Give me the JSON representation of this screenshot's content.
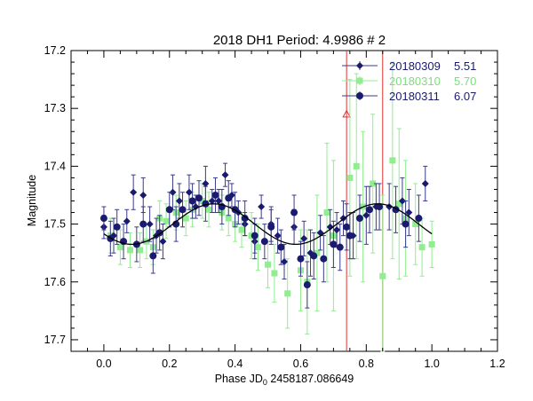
{
  "chart_data": {
    "type": "scatter",
    "title": "2018 DH1 Period:  4.9986 # 2",
    "xlabel_prefix": "Phase  JD",
    "xlabel_sub": "0",
    "xlabel_suffix": " 2458187.086649",
    "ylabel": "Magnitude",
    "xlim": [
      -0.1,
      1.2
    ],
    "ylim": [
      17.72,
      17.2
    ],
    "y_reversed": true,
    "x_ticks": [
      0.0,
      0.2,
      0.4,
      0.6,
      0.8,
      1.0,
      1.2
    ],
    "x_tick_labels": [
      "0.0",
      "0.2",
      "0.4",
      "0.6",
      "0.8",
      "1.0",
      "1.2"
    ],
    "y_ticks": [
      17.2,
      17.3,
      17.4,
      17.5,
      17.6,
      17.7
    ],
    "y_tick_labels": [
      "17.2",
      "17.3",
      "17.4",
      "17.5",
      "17.6",
      "17.7"
    ],
    "legend_position": "top-right",
    "series": [
      {
        "name": "20180309",
        "value_label": "5.51",
        "marker": "diamond",
        "color": "#1a1a6e",
        "points": [
          {
            "x": 0.0,
            "y": 17.505,
            "e": 0.02
          },
          {
            "x": 0.03,
            "y": 17.52,
            "e": 0.03
          },
          {
            "x": 0.07,
            "y": 17.495,
            "e": 0.02
          },
          {
            "x": 0.09,
            "y": 17.445,
            "e": 0.03
          },
          {
            "x": 0.12,
            "y": 17.45,
            "e": 0.03
          },
          {
            "x": 0.14,
            "y": 17.5,
            "e": 0.03
          },
          {
            "x": 0.16,
            "y": 17.52,
            "e": 0.03
          },
          {
            "x": 0.18,
            "y": 17.53,
            "e": 0.03
          },
          {
            "x": 0.21,
            "y": 17.445,
            "e": 0.03
          },
          {
            "x": 0.23,
            "y": 17.46,
            "e": 0.03
          },
          {
            "x": 0.26,
            "y": 17.445,
            "e": 0.03
          },
          {
            "x": 0.28,
            "y": 17.47,
            "e": 0.02
          },
          {
            "x": 0.31,
            "y": 17.43,
            "e": 0.03
          },
          {
            "x": 0.33,
            "y": 17.46,
            "e": 0.02
          },
          {
            "x": 0.35,
            "y": 17.46,
            "e": 0.02
          },
          {
            "x": 0.37,
            "y": 17.415,
            "e": 0.02
          },
          {
            "x": 0.39,
            "y": 17.45,
            "e": 0.02
          },
          {
            "x": 0.41,
            "y": 17.48,
            "e": 0.02
          },
          {
            "x": 0.43,
            "y": 17.5,
            "e": 0.02
          },
          {
            "x": 0.46,
            "y": 17.53,
            "e": 0.03
          },
          {
            "x": 0.48,
            "y": 17.47,
            "e": 0.02
          },
          {
            "x": 0.51,
            "y": 17.5,
            "e": 0.03
          },
          {
            "x": 0.53,
            "y": 17.52,
            "e": 0.03
          },
          {
            "x": 0.55,
            "y": 17.565,
            "e": 0.03
          },
          {
            "x": 0.58,
            "y": 17.505,
            "e": 0.03
          },
          {
            "x": 0.61,
            "y": 17.525,
            "e": 0.03
          },
          {
            "x": 0.63,
            "y": 17.55,
            "e": 0.04
          },
          {
            "x": 0.66,
            "y": 17.515,
            "e": 0.03
          },
          {
            "x": 0.69,
            "y": 17.505,
            "e": 0.03
          },
          {
            "x": 0.71,
            "y": 17.51,
            "e": 0.03
          },
          {
            "x": 0.73,
            "y": 17.49,
            "e": 0.03
          },
          {
            "x": 0.76,
            "y": 17.52,
            "e": 0.04
          },
          {
            "x": 0.8,
            "y": 17.485,
            "e": 0.05
          },
          {
            "x": 0.83,
            "y": 17.47,
            "e": 0.04
          },
          {
            "x": 0.87,
            "y": 17.47,
            "e": 0.04
          },
          {
            "x": 0.91,
            "y": 17.46,
            "e": 0.04
          },
          {
            "x": 0.93,
            "y": 17.48,
            "e": 0.04
          },
          {
            "x": 0.98,
            "y": 17.43,
            "e": 0.03
          }
        ]
      },
      {
        "name": "20180310",
        "value_label": "5.70",
        "marker": "square",
        "color": "#90ee90",
        "points": [
          {
            "x": 0.02,
            "y": 17.52,
            "e": 0.03
          },
          {
            "x": 0.05,
            "y": 17.54,
            "e": 0.03
          },
          {
            "x": 0.08,
            "y": 17.545,
            "e": 0.03
          },
          {
            "x": 0.11,
            "y": 17.545,
            "e": 0.03
          },
          {
            "x": 0.13,
            "y": 17.53,
            "e": 0.03
          },
          {
            "x": 0.15,
            "y": 17.54,
            "e": 0.03
          },
          {
            "x": 0.17,
            "y": 17.49,
            "e": 0.03
          },
          {
            "x": 0.19,
            "y": 17.495,
            "e": 0.03
          },
          {
            "x": 0.22,
            "y": 17.48,
            "e": 0.03
          },
          {
            "x": 0.25,
            "y": 17.49,
            "e": 0.03
          },
          {
            "x": 0.27,
            "y": 17.475,
            "e": 0.03
          },
          {
            "x": 0.3,
            "y": 17.46,
            "e": 0.03
          },
          {
            "x": 0.32,
            "y": 17.475,
            "e": 0.03
          },
          {
            "x": 0.36,
            "y": 17.48,
            "e": 0.03
          },
          {
            "x": 0.38,
            "y": 17.49,
            "e": 0.03
          },
          {
            "x": 0.4,
            "y": 17.5,
            "e": 0.03
          },
          {
            "x": 0.42,
            "y": 17.51,
            "e": 0.03
          },
          {
            "x": 0.45,
            "y": 17.52,
            "e": 0.04
          },
          {
            "x": 0.47,
            "y": 17.54,
            "e": 0.04
          },
          {
            "x": 0.5,
            "y": 17.57,
            "e": 0.04
          },
          {
            "x": 0.52,
            "y": 17.585,
            "e": 0.05
          },
          {
            "x": 0.56,
            "y": 17.62,
            "e": 0.06
          },
          {
            "x": 0.6,
            "y": 17.58,
            "e": 0.07
          },
          {
            "x": 0.62,
            "y": 17.6,
            "e": 0.09
          },
          {
            "x": 0.65,
            "y": 17.55,
            "e": 0.1
          },
          {
            "x": 0.68,
            "y": 17.48,
            "e": 0.12
          },
          {
            "x": 0.7,
            "y": 17.52,
            "e": 0.13
          },
          {
            "x": 0.75,
            "y": 17.42,
            "e": 0.17
          },
          {
            "x": 0.77,
            "y": 17.4,
            "e": 0.16
          },
          {
            "x": 0.79,
            "y": 17.47,
            "e": 0.13
          },
          {
            "x": 0.82,
            "y": 17.43,
            "e": 0.12
          },
          {
            "x": 0.85,
            "y": 17.59,
            "e": 0.14
          },
          {
            "x": 0.88,
            "y": 17.39,
            "e": 0.17
          },
          {
            "x": 0.9,
            "y": 17.465,
            "e": 0.13
          },
          {
            "x": 0.92,
            "y": 17.49,
            "e": 0.1
          },
          {
            "x": 0.95,
            "y": 17.5,
            "e": 0.07
          },
          {
            "x": 0.97,
            "y": 17.54,
            "e": 0.05
          },
          {
            "x": 1.0,
            "y": 17.535,
            "e": 0.04
          }
        ]
      },
      {
        "name": "20180311",
        "value_label": "6.07",
        "marker": "circle",
        "color": "#1a1a6e",
        "points": [
          {
            "x": 0.0,
            "y": 17.49,
            "e": 0.02
          },
          {
            "x": 0.02,
            "y": 17.525,
            "e": 0.03
          },
          {
            "x": 0.04,
            "y": 17.505,
            "e": 0.03
          },
          {
            "x": 0.06,
            "y": 17.53,
            "e": 0.03
          },
          {
            "x": 0.1,
            "y": 17.535,
            "e": 0.03
          },
          {
            "x": 0.12,
            "y": 17.5,
            "e": 0.03
          },
          {
            "x": 0.15,
            "y": 17.555,
            "e": 0.03
          },
          {
            "x": 0.17,
            "y": 17.515,
            "e": 0.03
          },
          {
            "x": 0.2,
            "y": 17.475,
            "e": 0.03
          },
          {
            "x": 0.22,
            "y": 17.5,
            "e": 0.03
          },
          {
            "x": 0.24,
            "y": 17.475,
            "e": 0.03
          },
          {
            "x": 0.27,
            "y": 17.46,
            "e": 0.03
          },
          {
            "x": 0.29,
            "y": 17.455,
            "e": 0.03
          },
          {
            "x": 0.31,
            "y": 17.465,
            "e": 0.03
          },
          {
            "x": 0.34,
            "y": 17.45,
            "e": 0.03
          },
          {
            "x": 0.36,
            "y": 17.47,
            "e": 0.03
          },
          {
            "x": 0.38,
            "y": 17.455,
            "e": 0.03
          },
          {
            "x": 0.4,
            "y": 17.475,
            "e": 0.03
          },
          {
            "x": 0.43,
            "y": 17.49,
            "e": 0.03
          },
          {
            "x": 0.46,
            "y": 17.52,
            "e": 0.03
          },
          {
            "x": 0.49,
            "y": 17.53,
            "e": 0.03
          },
          {
            "x": 0.51,
            "y": 17.505,
            "e": 0.03
          },
          {
            "x": 0.54,
            "y": 17.54,
            "e": 0.03
          },
          {
            "x": 0.58,
            "y": 17.48,
            "e": 0.03
          },
          {
            "x": 0.6,
            "y": 17.56,
            "e": 0.03
          },
          {
            "x": 0.62,
            "y": 17.605,
            "e": 0.04
          },
          {
            "x": 0.64,
            "y": 17.555,
            "e": 0.04
          },
          {
            "x": 0.67,
            "y": 17.56,
            "e": 0.04
          },
          {
            "x": 0.7,
            "y": 17.535,
            "e": 0.04
          },
          {
            "x": 0.72,
            "y": 17.54,
            "e": 0.04
          },
          {
            "x": 0.74,
            "y": 17.505,
            "e": 0.04
          },
          {
            "x": 0.75,
            "y": 17.52,
            "e": 0.04
          },
          {
            "x": 0.78,
            "y": 17.49,
            "e": 0.04
          },
          {
            "x": 0.81,
            "y": 17.475,
            "e": 0.04
          },
          {
            "x": 0.84,
            "y": 17.47,
            "e": 0.04
          },
          {
            "x": 0.89,
            "y": 17.475,
            "e": 0.04
          },
          {
            "x": 0.92,
            "y": 17.5,
            "e": 0.04
          },
          {
            "x": 0.96,
            "y": 17.49,
            "e": 0.04
          }
        ]
      }
    ],
    "outliers": [
      {
        "x": 0.74,
        "y": 17.31,
        "e_low": 17.2,
        "e_high": 17.72,
        "marker": "triangle",
        "color": "#e03030"
      },
      {
        "x": 0.85,
        "y": 17.47,
        "e_low": 17.2,
        "e_high": 17.72,
        "marker": "none",
        "color": "#e03030"
      }
    ],
    "fit_curve": {
      "type": "sinusoid",
      "mean": 17.5,
      "amplitude": 0.035,
      "cycles": 2,
      "peak_phase": 0.335,
      "x_range": [
        0.0,
        1.0
      ],
      "color": "#000000"
    }
  }
}
